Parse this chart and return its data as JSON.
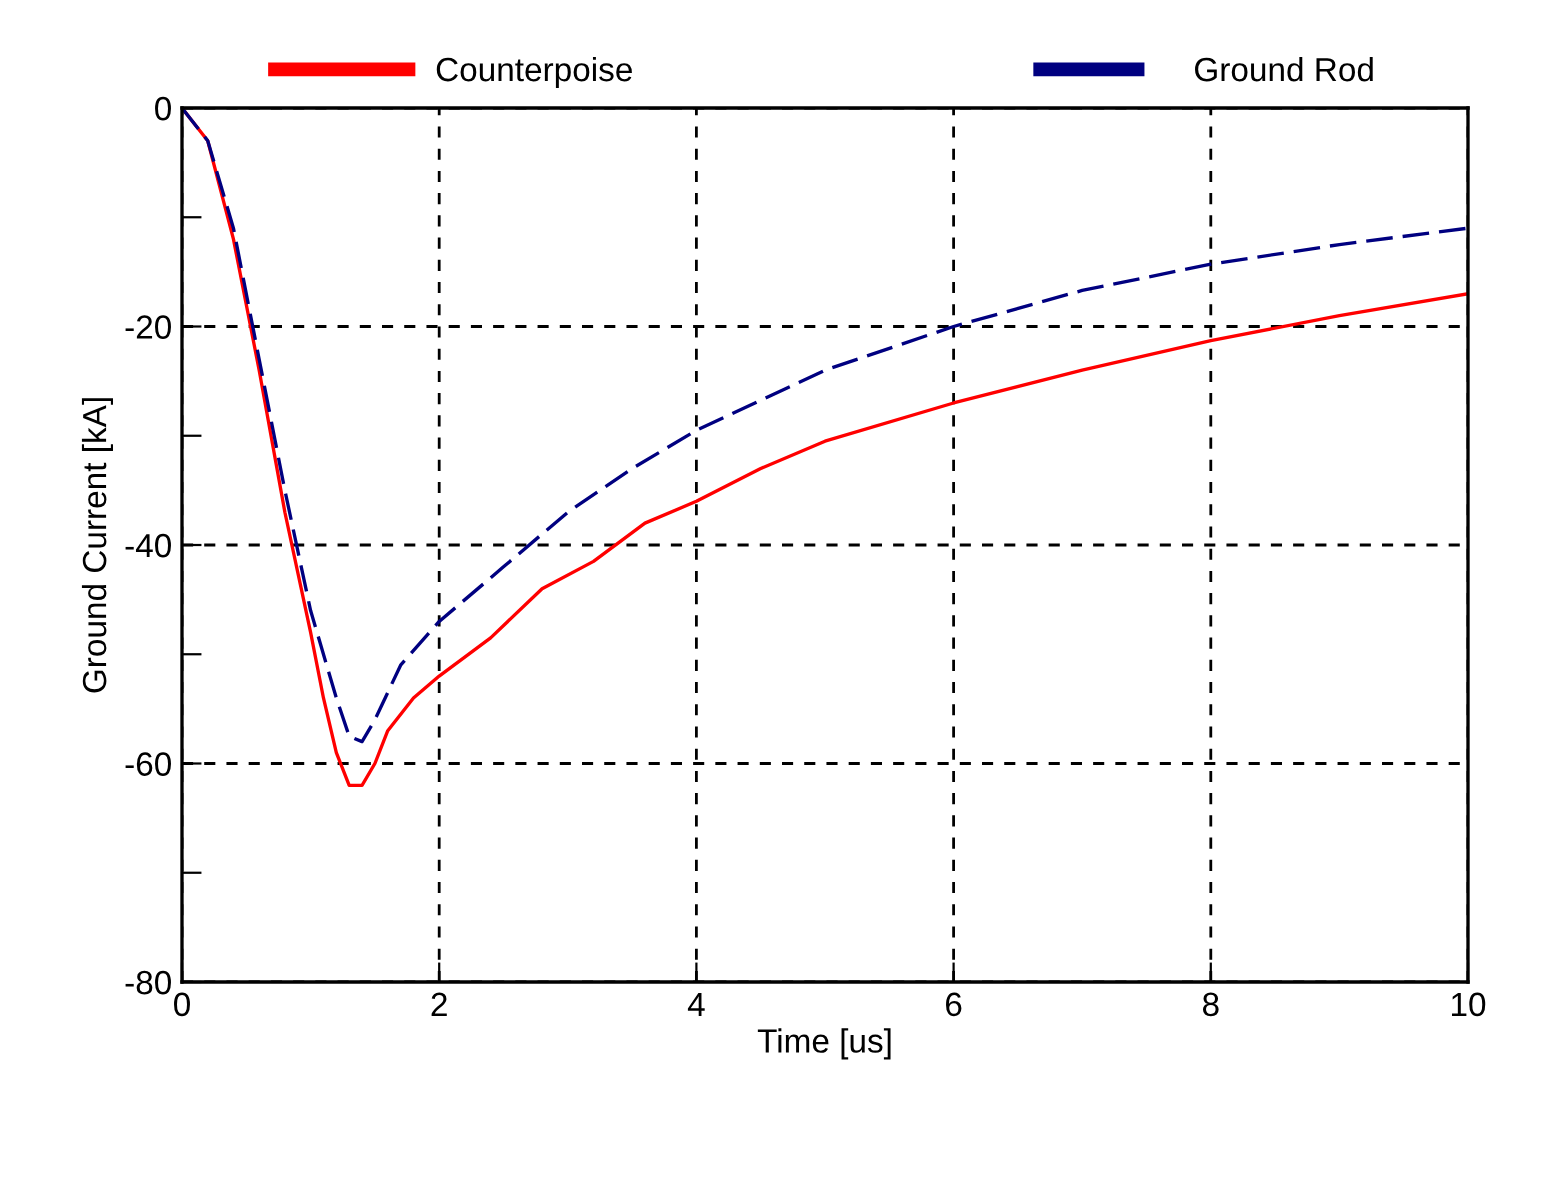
{
  "chart_data": {
    "type": "line",
    "xlabel": "Time [us]",
    "ylabel": "Ground Current [kA]",
    "xlim": [
      0,
      10
    ],
    "ylim": [
      -80,
      0
    ],
    "xticks": [
      0,
      2,
      4,
      6,
      8,
      10
    ],
    "yticks": [
      -80,
      {
        "value": -70,
        "label": null
      },
      -60,
      {
        "value": -50,
        "label": null
      },
      -40,
      {
        "value": -30,
        "label": null
      },
      -20,
      {
        "value": -10,
        "label": null
      },
      0
    ],
    "grid": true,
    "legend": "top",
    "series": [
      {
        "name": "Counterpoise",
        "color": "#ff0000",
        "line_style": "solid",
        "x": [
          0,
          0.2,
          0.4,
          0.6,
          0.8,
          1.0,
          1.1,
          1.2,
          1.3,
          1.4,
          1.5,
          1.6,
          1.8,
          2.0,
          2.4,
          2.8,
          3.2,
          3.6,
          4.0,
          4.5,
          5,
          6,
          7,
          8,
          9,
          10
        ],
        "values": [
          0,
          -3,
          -12,
          -24,
          -37,
          -48,
          -54,
          -59,
          -62,
          -62,
          -60,
          -57,
          -54,
          -52,
          -48.5,
          -44,
          -41.5,
          -38,
          -36,
          -33,
          -30.5,
          -27,
          -24,
          -21.3,
          -19,
          -17
        ]
      },
      {
        "name": "Ground Rod",
        "color": "#000080",
        "line_style": "dashed",
        "x": [
          0,
          0.2,
          0.4,
          0.6,
          0.8,
          1.0,
          1.2,
          1.3,
          1.4,
          1.5,
          1.7,
          2,
          2.5,
          3,
          3.5,
          4,
          5,
          6,
          7,
          8,
          9,
          10
        ],
        "values": [
          0,
          -3,
          -11,
          -23,
          -35,
          -46,
          -54,
          -57.5,
          -58,
          -56,
          -51,
          -47,
          -42,
          -37,
          -33,
          -29.5,
          -24,
          -20,
          -16.7,
          -14.3,
          -12.5,
          -11
        ]
      }
    ]
  }
}
